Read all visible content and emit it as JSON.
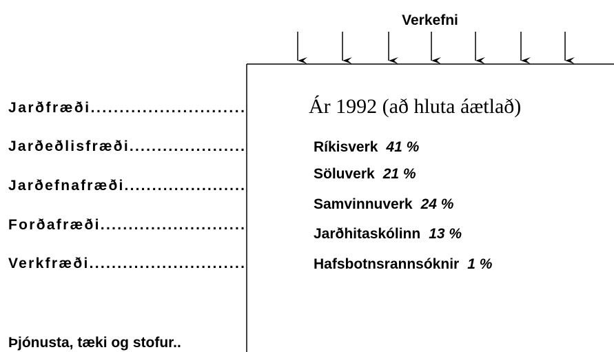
{
  "header": {
    "title": "Verkefni"
  },
  "fields": [
    "Jarðfræði...........................",
    "Jarðeðlisfræði.....................",
    "Jarðefnafræði......................",
    "Forðafræði..........................",
    "Verkfræði............................",
    "Þjónusta, tæki og stofur.."
  ],
  "panel": {
    "title": "Ár 1992 (að hluta áætlað)",
    "items": [
      {
        "name": "Ríkisverk",
        "share": "41 %"
      },
      {
        "name": "Söluverk",
        "share": "21 %"
      },
      {
        "name": "Samvinnuverk",
        "share": "24 %"
      },
      {
        "name": "Jarðhitaskólinn",
        "share": "13 %"
      },
      {
        "name": "Hafsbotnsrannsóknir",
        "share": "1 %"
      }
    ]
  }
}
